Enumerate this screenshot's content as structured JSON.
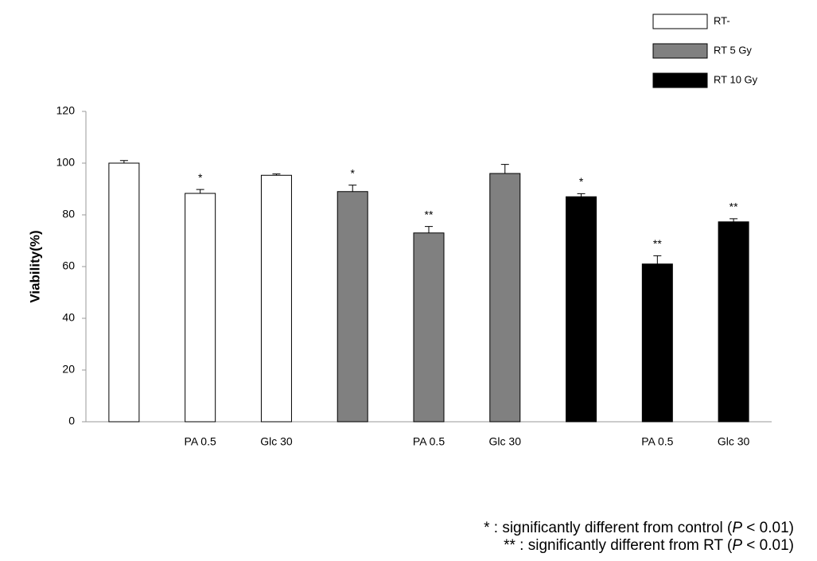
{
  "chart_data": {
    "type": "bar",
    "y_label": "Viability(%)",
    "categories": [
      null,
      "PA 0.5",
      "Glc 30",
      null,
      "PA 0.5",
      "Glc 30",
      null,
      "PA 0.5",
      "Glc 30"
    ],
    "series": [
      {
        "name": "RT-",
        "color": "#ffffff",
        "values": [
          100,
          88.3,
          95.3,
          null,
          null,
          null,
          null,
          null,
          null
        ],
        "errors": [
          1,
          1.5,
          0.5,
          null,
          null,
          null,
          null,
          null,
          null
        ],
        "markers": [
          null,
          "*",
          null,
          null,
          null,
          null,
          null,
          null,
          null
        ]
      },
      {
        "name": "RT 5 Gy",
        "color": "#808080",
        "values": [
          null,
          null,
          null,
          89,
          73,
          96,
          null,
          null,
          null
        ],
        "errors": [
          null,
          null,
          null,
          2.5,
          2.5,
          3.5,
          null,
          null,
          null
        ],
        "markers": [
          null,
          null,
          null,
          "*",
          "**",
          null,
          null,
          null,
          null
        ]
      },
      {
        "name": "RT 10 Gy",
        "color": "#000000",
        "values": [
          null,
          null,
          null,
          null,
          null,
          null,
          87,
          61,
          77.3
        ],
        "errors": [
          null,
          null,
          null,
          null,
          null,
          null,
          1.2,
          3.2,
          1.2
        ],
        "markers": [
          null,
          null,
          null,
          null,
          null,
          null,
          "*",
          "**",
          "**"
        ]
      }
    ],
    "ylim": [
      0,
      120
    ],
    "yticks": [
      0,
      20,
      40,
      60,
      80,
      100,
      120
    ],
    "footnotes": [
      {
        "text": "* : significantly different from control (",
        "italic": "P",
        "rest": " < 0.01)"
      },
      {
        "text": "** : significantly different from RT (",
        "italic": "P",
        "rest": " < 0.01)"
      }
    ]
  }
}
